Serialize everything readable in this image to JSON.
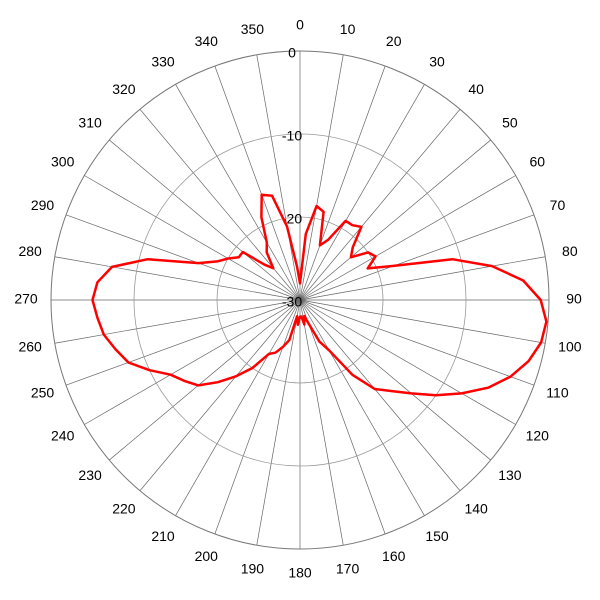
{
  "chart_data": {
    "type": "polar",
    "theta_zero": "top",
    "theta_direction": "clockwise",
    "rlim": [
      -30,
      0
    ],
    "rticks": [
      0,
      -10,
      -20,
      -30
    ],
    "thetaticks": [
      0,
      10,
      20,
      30,
      40,
      50,
      60,
      70,
      80,
      90,
      100,
      110,
      120,
      130,
      140,
      150,
      160,
      170,
      180,
      190,
      200,
      210,
      220,
      230,
      240,
      250,
      260,
      270,
      280,
      290,
      300,
      310,
      320,
      330,
      340,
      350
    ],
    "grid": true,
    "series": [
      {
        "color": "#ff0000",
        "x": [
          0,
          5,
          10,
          15,
          20,
          25,
          30,
          35,
          40,
          45,
          50,
          55,
          60,
          65,
          70,
          75,
          80,
          85,
          90,
          95,
          100,
          105,
          110,
          115,
          120,
          125,
          130,
          135,
          140,
          145,
          150,
          155,
          160,
          165,
          170,
          175,
          180,
          185,
          190,
          195,
          200,
          205,
          210,
          215,
          220,
          225,
          230,
          235,
          240,
          245,
          250,
          255,
          260,
          265,
          270,
          275,
          280,
          285,
          290,
          295,
          300,
          305,
          310,
          315,
          320,
          325,
          330,
          335,
          340,
          345,
          350,
          355
        ],
        "values": [
          -28,
          -22,
          -18.5,
          -19,
          -23,
          -22,
          -19,
          -19,
          -18.5,
          -21,
          -22,
          -20,
          -19.5,
          -21,
          -18,
          -11,
          -6.5,
          -3,
          -1,
          -0.2,
          -0.5,
          -1.5,
          -3,
          -5,
          -7.5,
          -10,
          -12.5,
          -14.5,
          -16,
          -19,
          -23,
          -24.5,
          -27,
          -28,
          -27,
          -28,
          -28,
          -27,
          -28,
          -25,
          -24,
          -23,
          -22.5,
          -20,
          -18,
          -16,
          -14,
          -13,
          -12,
          -10,
          -8,
          -7,
          -6,
          -5.5,
          -5,
          -5.5,
          -7,
          -11,
          -17,
          -19,
          -20,
          -21,
          -21,
          -24,
          -25,
          -23,
          -22,
          -19,
          -16.5,
          -17,
          -21,
          -26
        ]
      }
    ]
  }
}
